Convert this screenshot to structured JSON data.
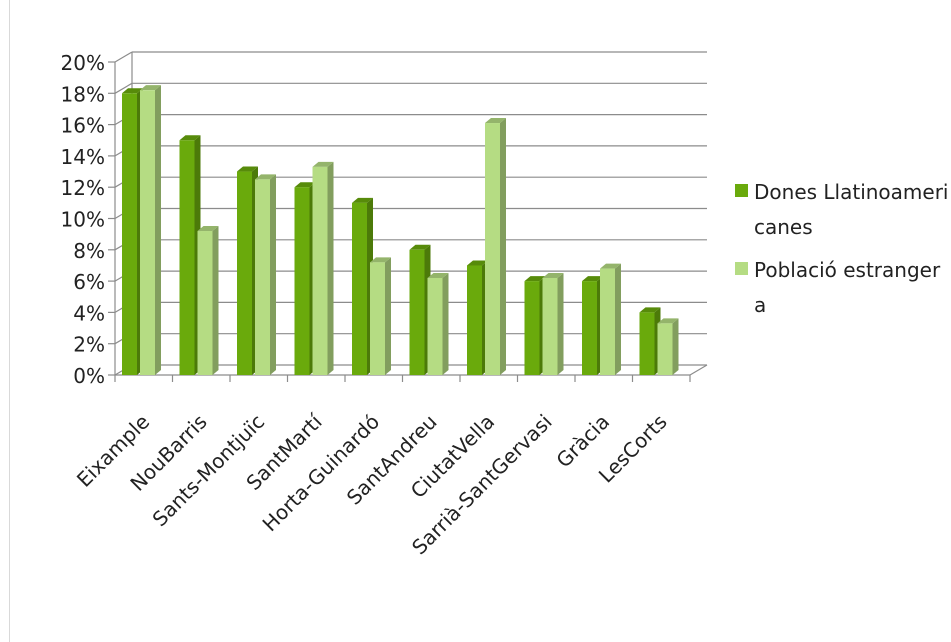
{
  "chart_data": {
    "type": "bar",
    "categories": [
      "Eixample",
      "NouBarris",
      "Sants-Montjuïc",
      "SantMartí",
      "Horta-Guinardó",
      "SantAndreu",
      "CiutatVella",
      "Sarrià-SantGervasi",
      "Gràcia",
      "LesCorts"
    ],
    "series": [
      {
        "name": "Dones Llatinoamericanes",
        "values": [
          18,
          15,
          13,
          12,
          11,
          8,
          7,
          6,
          6,
          4
        ],
        "color": "#6aaa0c"
      },
      {
        "name": "Població estrangera",
        "values": [
          18.2,
          9.2,
          12.5,
          13.3,
          7.2,
          6.2,
          16.1,
          6.2,
          6.8,
          3.3
        ],
        "color": "#b5dc83"
      }
    ],
    "yticks": [
      "0%",
      "2%",
      "4%",
      "6%",
      "8%",
      "10%",
      "12%",
      "14%",
      "16%",
      "18%",
      "20%"
    ],
    "ylim": [
      0,
      20
    ],
    "grid": true,
    "legend": "right",
    "style": "3d-clustered-column"
  }
}
